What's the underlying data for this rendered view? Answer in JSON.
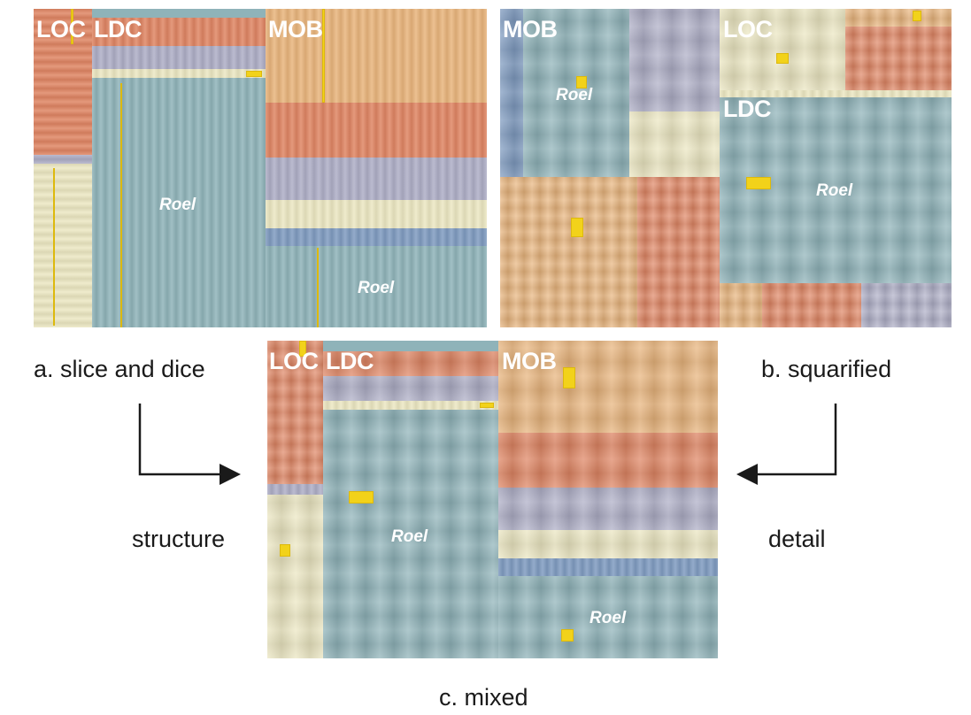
{
  "colors": {
    "teal": "#8fb3b9",
    "salmon": "#df8563",
    "lavender": "#aeaec6",
    "cream": "#ece7c2",
    "orange": "#e8b47c",
    "steel": "#7f9bc0",
    "highlight": "#f2d21a"
  },
  "panel_a": {
    "loc": "LOC",
    "ldc": "LDC",
    "mob": "MOB",
    "roel_1": "Roel",
    "roel_2": "Roel"
  },
  "panel_b": {
    "mob": "MOB",
    "loc": "LOC",
    "ldc": "LDC",
    "roel_1": "Roel",
    "roel_2": "Roel"
  },
  "panel_c": {
    "loc": "LOC",
    "ldc": "LDC",
    "mob": "MOB",
    "roel_1": "Roel",
    "roel_2": "Roel"
  },
  "captions": {
    "a": "a. slice and dice",
    "b": "b. squarified",
    "c": "c. mixed",
    "structure": "structure",
    "detail": "detail"
  },
  "arrows": {
    "left": "arrow-right-icon",
    "right": "arrow-left-icon"
  }
}
